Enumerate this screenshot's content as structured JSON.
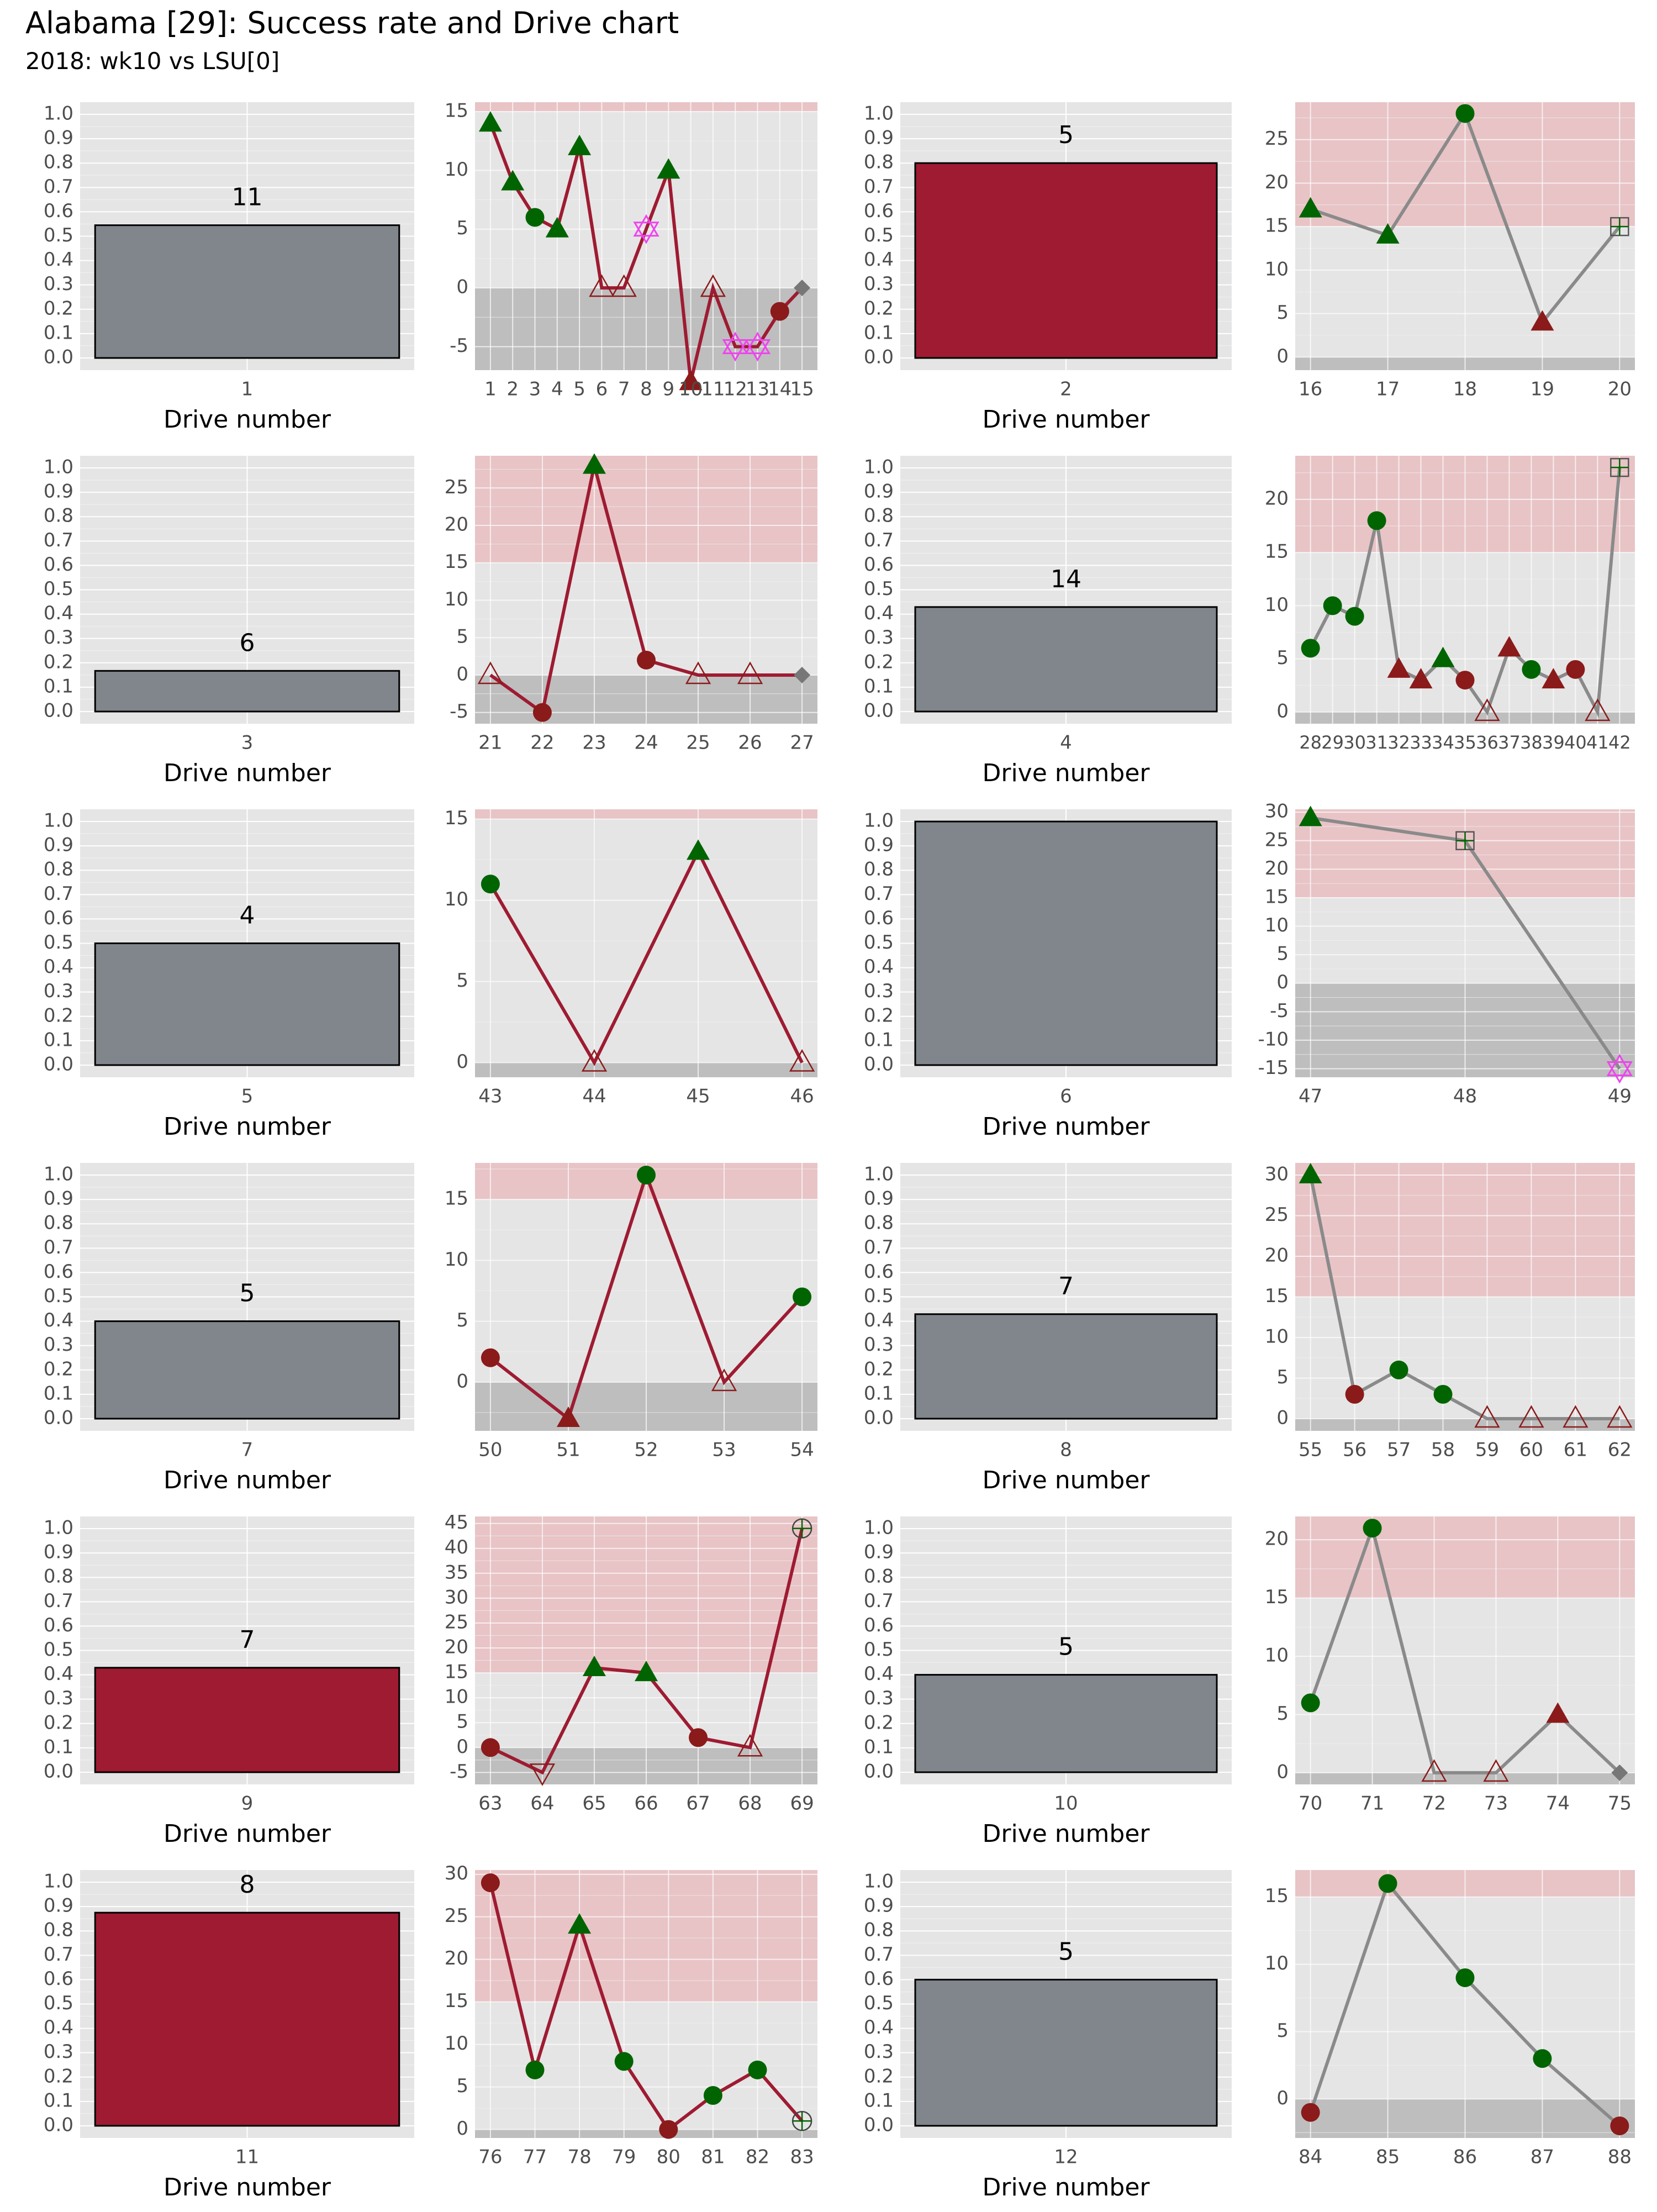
{
  "title": "Alabama [29]: Success rate and Drive chart",
  "subtitle": "2018: wk10 vs LSU[0]",
  "colors": {
    "panel": "#e5e5e5",
    "grid_major": "#ffffff",
    "grid_minor": "#f2f2f2",
    "bar_gray": "#80868b",
    "bar_crimson": "#9e1b32",
    "line_crimson": "#9e1b32",
    "line_gray": "#8a8a8a",
    "success_green": "#006400",
    "fail_crimson": "#8b1a1a",
    "zone_pink": "#e8c4c6",
    "zone_gray": "#bebebe",
    "magenta": "#ee44ee"
  },
  "chart_data": [
    {
      "type": "bar",
      "row": 0,
      "col": 0,
      "category": "1",
      "value": 0.545,
      "label": "11",
      "fill": "gray",
      "xlabel": "Drive number",
      "ylim": [
        0,
        1.0
      ]
    },
    {
      "type": "line",
      "row": 0,
      "col": 1,
      "x": [
        1,
        2,
        3,
        4,
        5,
        6,
        7,
        8,
        9,
        10,
        11,
        12,
        13,
        14,
        15
      ],
      "y": [
        14,
        9,
        6,
        5,
        12,
        0,
        0,
        5,
        10,
        -8,
        0,
        -5,
        -5,
        -2,
        0
      ],
      "shapes": [
        "tri-g",
        "tri-g",
        "dot-g",
        "tri-g",
        "tri-g",
        "tri-o",
        "tri-o",
        "star",
        "tri-g",
        "tri-r",
        "tri-o",
        "star",
        "star",
        "dot-r",
        "diamond"
      ],
      "line": "crimson",
      "ylim": [
        -7,
        15.8
      ],
      "yticks": [
        -5,
        0,
        5,
        10,
        15
      ]
    },
    {
      "type": "bar",
      "row": 0,
      "col": 2,
      "category": "2",
      "value": 0.8,
      "label": "5",
      "fill": "crimson",
      "xlabel": "Drive number",
      "ylim": [
        0,
        1.0
      ]
    },
    {
      "type": "line",
      "row": 0,
      "col": 3,
      "x": [
        16,
        17,
        18,
        19,
        20
      ],
      "y": [
        17,
        14,
        28,
        4,
        15
      ],
      "shapes": [
        "tri-g",
        "tri-g",
        "dot-g",
        "tri-r",
        "square"
      ],
      "line": "gray",
      "ylim": [
        -1.5,
        29.3
      ],
      "yticks": [
        0,
        5,
        10,
        15,
        20,
        25
      ]
    },
    {
      "type": "bar",
      "row": 1,
      "col": 0,
      "category": "3",
      "value": 0.167,
      "label": "6",
      "fill": "gray",
      "xlabel": "Drive number",
      "ylim": [
        0,
        1.0
      ]
    },
    {
      "type": "line",
      "row": 1,
      "col": 1,
      "x": [
        21,
        22,
        23,
        24,
        25,
        26,
        27
      ],
      "y": [
        0,
        -5,
        28,
        2,
        0,
        0,
        0
      ],
      "shapes": [
        "tri-o",
        "dot-r",
        "tri-g",
        "dot-r",
        "tri-o",
        "tri-o",
        "diamond"
      ],
      "line": "crimson",
      "ylim": [
        -6.5,
        29.3
      ],
      "yticks": [
        -5,
        0,
        5,
        10,
        15,
        20,
        25
      ]
    },
    {
      "type": "bar",
      "row": 1,
      "col": 2,
      "category": "4",
      "value": 0.429,
      "label": "14",
      "fill": "gray",
      "xlabel": "Drive number",
      "ylim": [
        0,
        1.0
      ]
    },
    {
      "type": "line",
      "row": 1,
      "col": 3,
      "x": [
        28,
        29,
        30,
        31,
        32,
        33,
        34,
        35,
        36,
        37,
        38,
        39,
        40,
        41,
        42
      ],
      "y": [
        6,
        10,
        9,
        18,
        4,
        3,
        5,
        3,
        0,
        6,
        4,
        3,
        4,
        0,
        23
      ],
      "shapes": [
        "dot-g",
        "dot-g",
        "dot-g",
        "dot-g",
        "tri-r",
        "tri-r",
        "tri-g",
        "dot-r",
        "tri-o",
        "tri-r",
        "dot-g",
        "tri-r",
        "dot-r",
        "tri-o",
        "square"
      ],
      "line": "gray",
      "ylim": [
        -1.1,
        24.1
      ],
      "yticks": [
        0,
        5,
        10,
        15,
        20
      ],
      "compact_xticks": true
    },
    {
      "type": "bar",
      "row": 2,
      "col": 0,
      "category": "5",
      "value": 0.5,
      "label": "4",
      "fill": "gray",
      "xlabel": "Drive number",
      "ylim": [
        0,
        1.0
      ]
    },
    {
      "type": "line",
      "row": 2,
      "col": 1,
      "x": [
        43,
        44,
        45,
        46
      ],
      "y": [
        11,
        0,
        13,
        0
      ],
      "shapes": [
        "dot-g",
        "tri-o",
        "tri-g",
        "tri-o"
      ],
      "line": "crimson",
      "ylim": [
        -0.9,
        15.6
      ],
      "yticks": [
        0,
        5,
        10,
        15
      ]
    },
    {
      "type": "bar",
      "row": 2,
      "col": 2,
      "category": "6",
      "value": 1.0,
      "label": "",
      "fill": "gray",
      "xlabel": "Drive number",
      "ylim": [
        0,
        1.0
      ]
    },
    {
      "type": "line",
      "row": 2,
      "col": 3,
      "x": [
        47,
        48,
        49
      ],
      "y": [
        29,
        25,
        -15
      ],
      "shapes": [
        "tri-g",
        "square",
        "star"
      ],
      "line": "gray",
      "ylim": [
        -16.5,
        30.5
      ],
      "yticks": [
        -15,
        -10,
        -5,
        0,
        5,
        10,
        15,
        20,
        25,
        30
      ]
    },
    {
      "type": "bar",
      "row": 3,
      "col": 0,
      "category": "7",
      "value": 0.4,
      "label": "5",
      "fill": "gray",
      "xlabel": "Drive number",
      "ylim": [
        0,
        1.0
      ]
    },
    {
      "type": "line",
      "row": 3,
      "col": 1,
      "x": [
        50,
        51,
        52,
        53,
        54
      ],
      "y": [
        2,
        -3,
        17,
        0,
        7
      ],
      "shapes": [
        "dot-r",
        "tri-r",
        "dot-g",
        "tri-o",
        "dot-g"
      ],
      "line": "crimson",
      "ylim": [
        -4.0,
        18.0
      ],
      "yticks": [
        0,
        5,
        10,
        15
      ]
    },
    {
      "type": "bar",
      "row": 3,
      "col": 2,
      "category": "8",
      "value": 0.429,
      "label": "7",
      "fill": "gray",
      "xlabel": "Drive number",
      "ylim": [
        0,
        1.0
      ]
    },
    {
      "type": "line",
      "row": 3,
      "col": 3,
      "x": [
        55,
        56,
        57,
        58,
        59,
        60,
        61,
        62
      ],
      "y": [
        30,
        3,
        6,
        3,
        0,
        0,
        0,
        0
      ],
      "shapes": [
        "tri-g",
        "dot-r",
        "dot-g",
        "dot-g",
        "tri-o",
        "tri-o",
        "tri-o",
        "tri-o"
      ],
      "line": "gray",
      "ylim": [
        -1.5,
        31.5
      ],
      "yticks": [
        0,
        5,
        10,
        15,
        20,
        25,
        30
      ]
    },
    {
      "type": "bar",
      "row": 4,
      "col": 0,
      "category": "9",
      "value": 0.429,
      "label": "7",
      "fill": "crimson",
      "xlabel": "Drive number",
      "ylim": [
        0,
        1.0
      ]
    },
    {
      "type": "line",
      "row": 4,
      "col": 1,
      "x": [
        63,
        64,
        65,
        66,
        67,
        68,
        69
      ],
      "y": [
        0,
        -5,
        16,
        15,
        2,
        0,
        44
      ],
      "shapes": [
        "dot-r",
        "tri-down",
        "tri-g",
        "tri-g",
        "dot-r",
        "tri-o",
        "circle-plus"
      ],
      "line": "crimson",
      "ylim": [
        -7.4,
        46.4
      ],
      "yticks": [
        -5,
        0,
        5,
        10,
        15,
        20,
        25,
        30,
        35,
        40,
        45
      ]
    },
    {
      "type": "bar",
      "row": 4,
      "col": 2,
      "category": "10",
      "value": 0.4,
      "label": "5",
      "fill": "gray",
      "xlabel": "Drive number",
      "ylim": [
        0,
        1.0
      ]
    },
    {
      "type": "line",
      "row": 4,
      "col": 3,
      "x": [
        70,
        71,
        72,
        73,
        74,
        75
      ],
      "y": [
        6,
        21,
        0,
        0,
        5,
        0
      ],
      "shapes": [
        "dot-g",
        "dot-g",
        "tri-o",
        "tri-o",
        "tri-r",
        "diamond"
      ],
      "line": "gray",
      "ylim": [
        -1.0,
        22.0
      ],
      "yticks": [
        0,
        5,
        10,
        15,
        20
      ]
    },
    {
      "type": "bar",
      "row": 5,
      "col": 0,
      "category": "11",
      "value": 0.875,
      "label": "8",
      "fill": "crimson",
      "xlabel": "Drive number",
      "ylim": [
        0,
        1.0
      ]
    },
    {
      "type": "line",
      "row": 5,
      "col": 1,
      "x": [
        76,
        77,
        78,
        79,
        80,
        81,
        82,
        83
      ],
      "y": [
        29,
        7,
        24,
        8,
        0,
        4,
        7,
        1
      ],
      "shapes": [
        "dot-r",
        "dot-g",
        "tri-g",
        "dot-g",
        "dot-r",
        "dot-g",
        "dot-g",
        "circle-plus"
      ],
      "line": "crimson",
      "ylim": [
        -1.0,
        30.5
      ],
      "yticks": [
        0,
        5,
        10,
        15,
        20,
        25,
        30
      ]
    },
    {
      "type": "bar",
      "row": 5,
      "col": 2,
      "category": "12",
      "value": 0.6,
      "label": "5",
      "fill": "gray",
      "xlabel": "Drive number",
      "ylim": [
        0,
        1.0
      ]
    },
    {
      "type": "line",
      "row": 5,
      "col": 3,
      "x": [
        84,
        85,
        86,
        87,
        88
      ],
      "y": [
        -1,
        16,
        9,
        3,
        -2
      ],
      "shapes": [
        "dot-r",
        "dot-g",
        "dot-g",
        "dot-g",
        "dot-r"
      ],
      "line": "gray",
      "ylim": [
        -2.9,
        17.0
      ],
      "yticks": [
        0,
        5,
        10,
        15
      ]
    }
  ]
}
